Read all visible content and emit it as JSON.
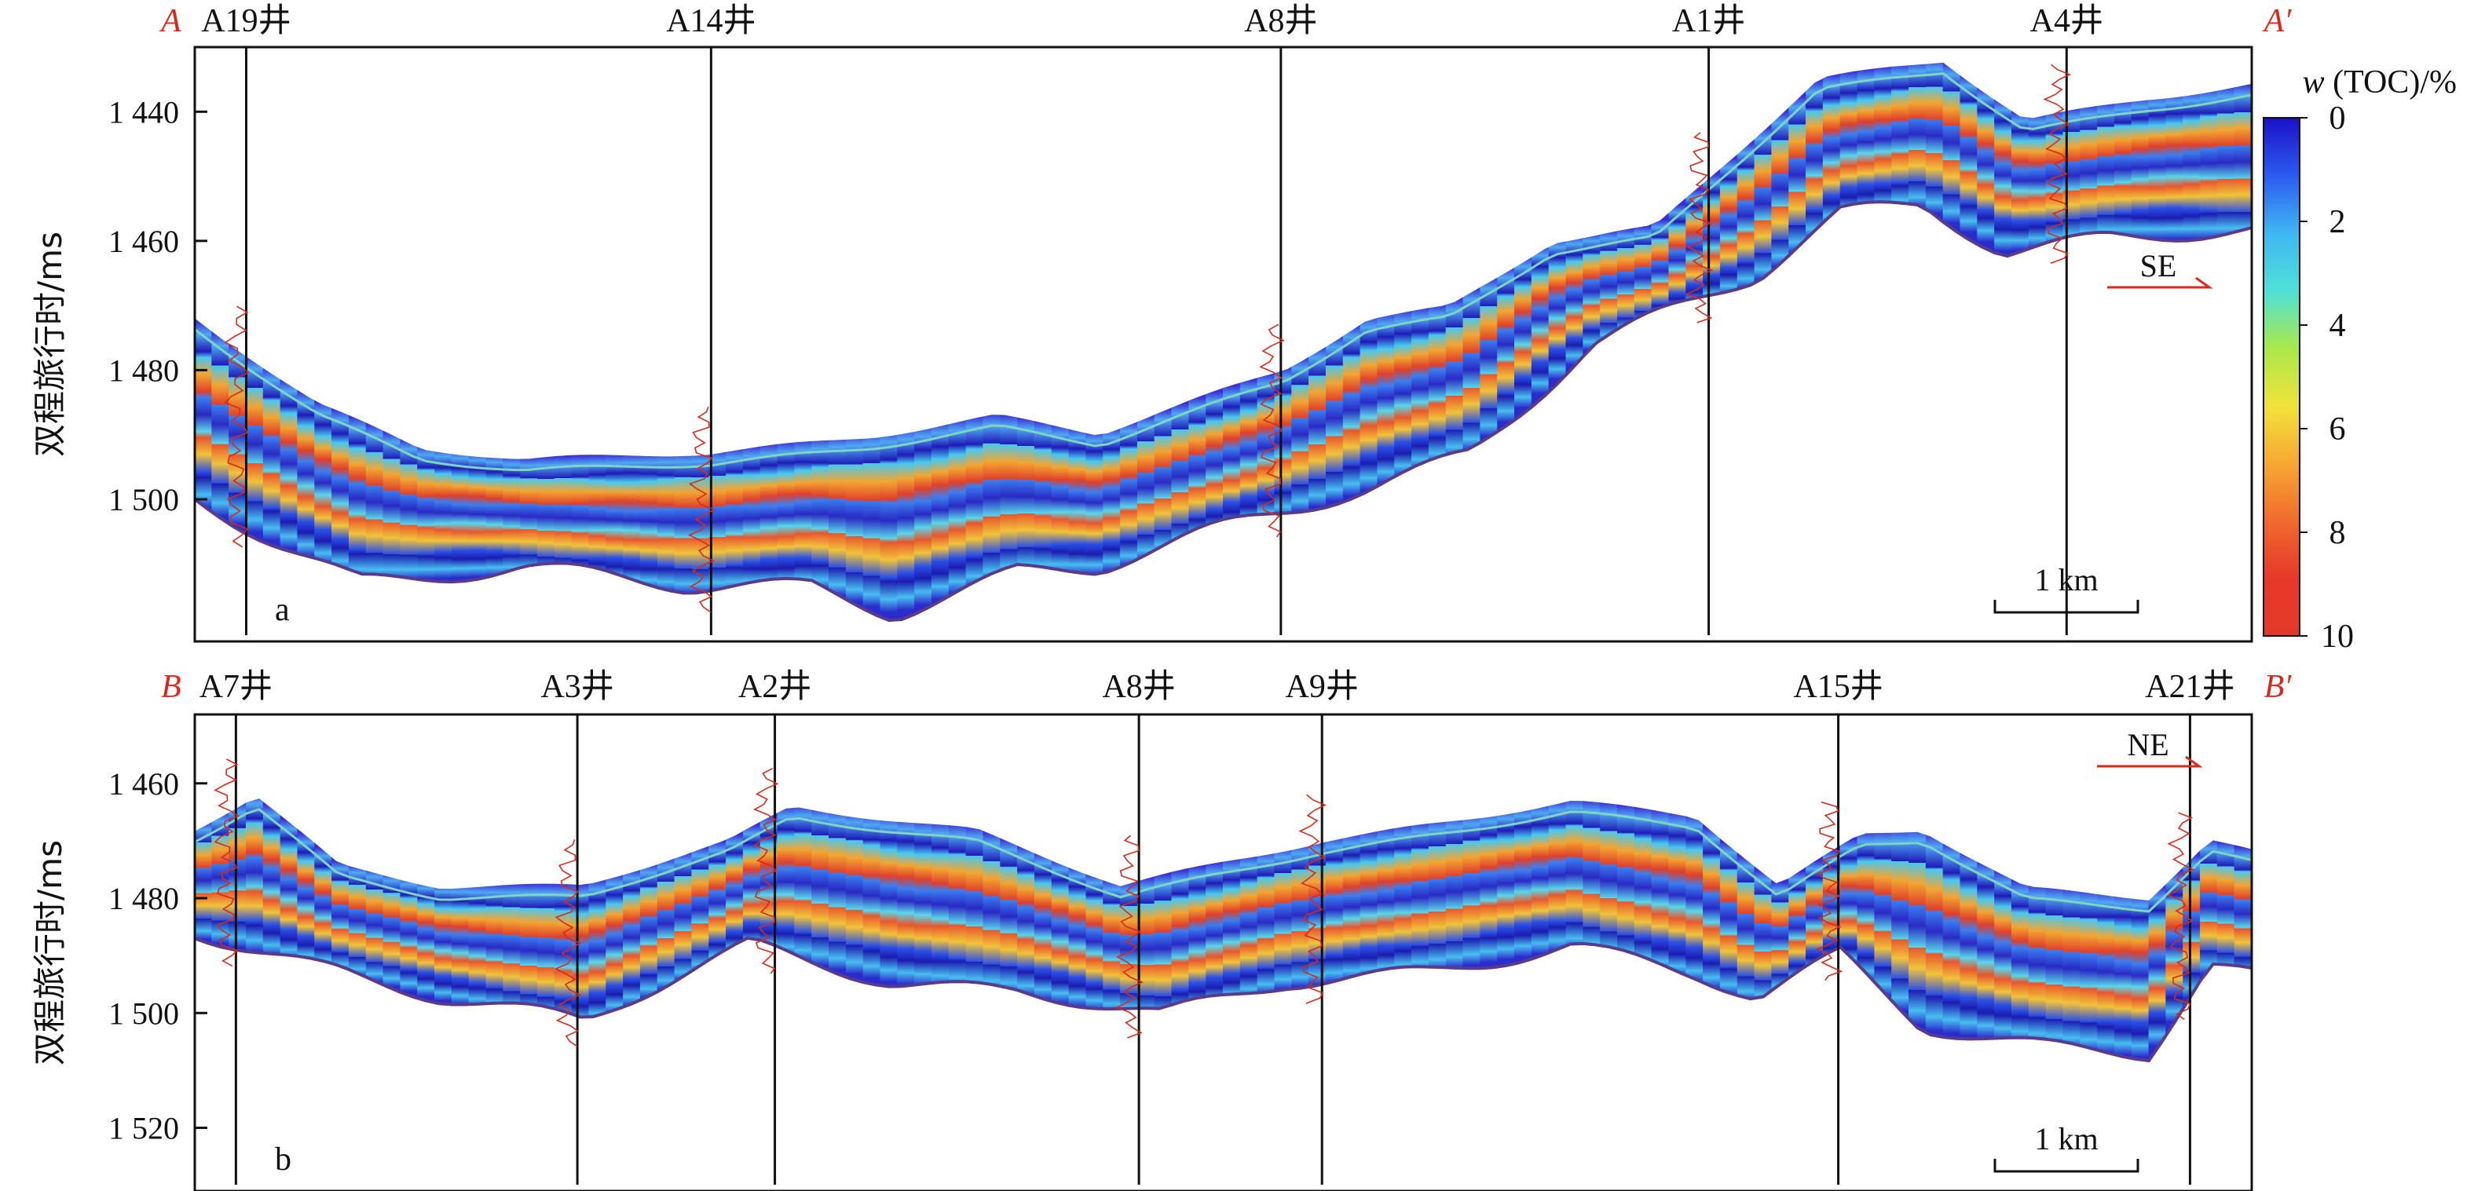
{
  "chart_data": [
    {
      "type": "heatmap",
      "panel_label": "a",
      "section_start": "A",
      "section_end": "A′",
      "ylabel": "双程旅行时/ms",
      "yticks": [
        1440,
        1460,
        1480,
        1500
      ],
      "ylim": [
        1430,
        1522
      ],
      "wells": [
        {
          "name": "A19井",
          "pos": 0.025
        },
        {
          "name": "A14井",
          "pos": 0.251
        },
        {
          "name": "A8井",
          "pos": 0.528
        },
        {
          "name": "A1井",
          "pos": 0.736
        },
        {
          "name": "A4井",
          "pos": 0.91
        }
      ],
      "direction": "SE",
      "scale_label": "1 km",
      "top_horizon_ms": [
        {
          "x": 0.0,
          "t": 1472
        },
        {
          "x": 0.06,
          "t": 1485
        },
        {
          "x": 0.11,
          "t": 1492
        },
        {
          "x": 0.16,
          "t": 1494
        },
        {
          "x": 0.25,
          "t": 1493
        },
        {
          "x": 0.33,
          "t": 1490
        },
        {
          "x": 0.39,
          "t": 1487
        },
        {
          "x": 0.44,
          "t": 1490
        },
        {
          "x": 0.53,
          "t": 1480
        },
        {
          "x": 0.57,
          "t": 1472
        },
        {
          "x": 0.61,
          "t": 1470
        },
        {
          "x": 0.66,
          "t": 1460
        },
        {
          "x": 0.71,
          "t": 1458
        },
        {
          "x": 0.79,
          "t": 1435
        },
        {
          "x": 0.85,
          "t": 1432
        },
        {
          "x": 0.89,
          "t": 1441
        },
        {
          "x": 0.95,
          "t": 1438
        },
        {
          "x": 1.0,
          "t": 1436
        }
      ],
      "base_horizon_ms": [
        {
          "x": 0.0,
          "t": 1500
        },
        {
          "x": 0.08,
          "t": 1512
        },
        {
          "x": 0.16,
          "t": 1511
        },
        {
          "x": 0.24,
          "t": 1514
        },
        {
          "x": 0.3,
          "t": 1513
        },
        {
          "x": 0.34,
          "t": 1517
        },
        {
          "x": 0.4,
          "t": 1511
        },
        {
          "x": 0.44,
          "t": 1511
        },
        {
          "x": 0.52,
          "t": 1503
        },
        {
          "x": 0.57,
          "t": 1498
        },
        {
          "x": 0.62,
          "t": 1492
        },
        {
          "x": 0.68,
          "t": 1476
        },
        {
          "x": 0.76,
          "t": 1466
        },
        {
          "x": 0.8,
          "t": 1456
        },
        {
          "x": 0.84,
          "t": 1454
        },
        {
          "x": 0.88,
          "t": 1461
        },
        {
          "x": 0.93,
          "t": 1459
        },
        {
          "x": 1.0,
          "t": 1459
        }
      ]
    },
    {
      "type": "heatmap",
      "panel_label": "b",
      "section_start": "B",
      "section_end": "B′",
      "ylabel": "双程旅行时/ms",
      "yticks": [
        1460,
        1480,
        1500,
        1520
      ],
      "ylim": [
        1448,
        1531
      ],
      "wells": [
        {
          "name": "A7井",
          "pos": 0.02
        },
        {
          "name": "A3井",
          "pos": 0.186
        },
        {
          "name": "A2井",
          "pos": 0.282
        },
        {
          "name": "A8井",
          "pos": 0.459
        },
        {
          "name": "A9井",
          "pos": 0.548
        },
        {
          "name": "A15井",
          "pos": 0.799
        },
        {
          "name": "A21井",
          "pos": 0.97
        }
      ],
      "direction": "NE",
      "scale_label": "1 km",
      "top_horizon_ms": [
        {
          "x": 0.0,
          "t": 1468
        },
        {
          "x": 0.03,
          "t": 1462
        },
        {
          "x": 0.07,
          "t": 1474
        },
        {
          "x": 0.12,
          "t": 1478
        },
        {
          "x": 0.19,
          "t": 1478
        },
        {
          "x": 0.26,
          "t": 1470
        },
        {
          "x": 0.29,
          "t": 1464
        },
        {
          "x": 0.38,
          "t": 1468
        },
        {
          "x": 0.45,
          "t": 1478
        },
        {
          "x": 0.55,
          "t": 1470
        },
        {
          "x": 0.6,
          "t": 1467
        },
        {
          "x": 0.67,
          "t": 1463
        },
        {
          "x": 0.73,
          "t": 1466
        },
        {
          "x": 0.77,
          "t": 1478
        },
        {
          "x": 0.81,
          "t": 1469
        },
        {
          "x": 0.84,
          "t": 1468
        },
        {
          "x": 0.89,
          "t": 1478
        },
        {
          "x": 0.95,
          "t": 1480
        },
        {
          "x": 0.98,
          "t": 1470
        },
        {
          "x": 1.0,
          "t": 1472
        }
      ],
      "base_horizon_ms": [
        {
          "x": 0.0,
          "t": 1486
        },
        {
          "x": 0.07,
          "t": 1492
        },
        {
          "x": 0.12,
          "t": 1497
        },
        {
          "x": 0.19,
          "t": 1502
        },
        {
          "x": 0.27,
          "t": 1488
        },
        {
          "x": 0.34,
          "t": 1494
        },
        {
          "x": 0.4,
          "t": 1496
        },
        {
          "x": 0.47,
          "t": 1501
        },
        {
          "x": 0.53,
          "t": 1495
        },
        {
          "x": 0.6,
          "t": 1492
        },
        {
          "x": 0.67,
          "t": 1488
        },
        {
          "x": 0.73,
          "t": 1494
        },
        {
          "x": 0.76,
          "t": 1498
        },
        {
          "x": 0.8,
          "t": 1490
        },
        {
          "x": 0.84,
          "t": 1502
        },
        {
          "x": 0.9,
          "t": 1505
        },
        {
          "x": 0.95,
          "t": 1507
        },
        {
          "x": 0.98,
          "t": 1492
        },
        {
          "x": 1.0,
          "t": 1494
        }
      ]
    }
  ],
  "colorbar": {
    "label_var": "w",
    "label_rest": " (TOC)/%",
    "ticks": [
      0,
      2,
      4,
      6,
      8,
      10
    ],
    "colors": [
      "#1b10c8",
      "#2c5bf0",
      "#3fb6f2",
      "#4ee0d8",
      "#a7e94a",
      "#f1e23b",
      "#f7a832",
      "#f06a2d",
      "#e6392a",
      "#e23a2a"
    ]
  }
}
